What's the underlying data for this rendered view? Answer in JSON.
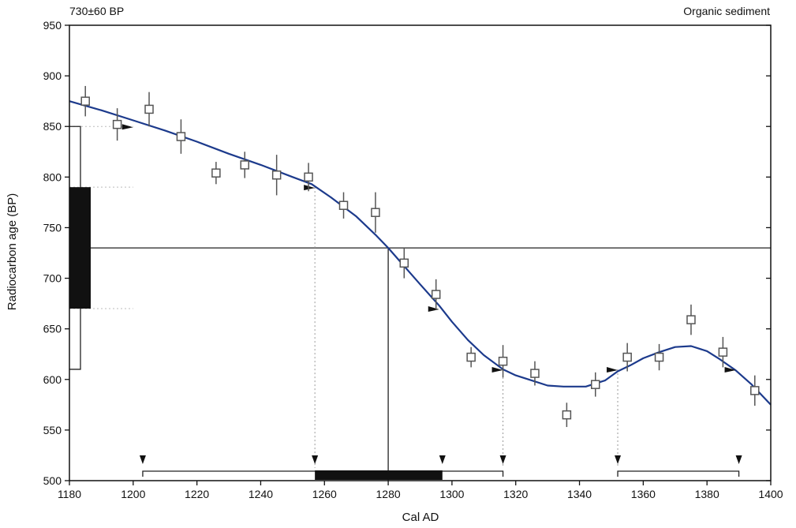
{
  "chart_data": {
    "type": "scatter",
    "title_left": "730±60 BP",
    "title_right": "Organic sediment",
    "xlabel": "Cal AD",
    "ylabel": "Radiocarbon age (BP)",
    "xlim": [
      1180,
      1400
    ],
    "ylim": [
      500,
      950
    ],
    "x_ticks": [
      1180,
      1200,
      1220,
      1240,
      1260,
      1280,
      1300,
      1320,
      1340,
      1360,
      1380,
      1400
    ],
    "x_tick_labels": [
      "1180",
      "1200",
      "1220",
      "1240",
      "1260",
      "1280",
      "1300",
      "1320",
      "1340",
      "1360",
      "1380",
      "1400"
    ],
    "y_ticks": [
      500,
      550,
      600,
      650,
      700,
      750,
      800,
      850,
      900,
      950
    ],
    "y_tick_labels": [
      "500",
      "550",
      "600",
      "650",
      "700",
      "750",
      "800",
      "850",
      "900",
      "950"
    ],
    "measured_age": 730,
    "sigma1_range": [
      670,
      790
    ],
    "sigma2_range": [
      610,
      850
    ],
    "measurements": [
      {
        "x": 1185,
        "y": 875,
        "err": 15
      },
      {
        "x": 1195,
        "y": 852,
        "err": 16
      },
      {
        "x": 1205,
        "y": 867,
        "err": 17
      },
      {
        "x": 1215,
        "y": 840,
        "err": 17
      },
      {
        "x": 1226,
        "y": 804,
        "err": 11
      },
      {
        "x": 1235,
        "y": 812,
        "err": 13
      },
      {
        "x": 1245,
        "y": 802,
        "err": 20
      },
      {
        "x": 1255,
        "y": 800,
        "err": 14
      },
      {
        "x": 1266,
        "y": 772,
        "err": 13
      },
      {
        "x": 1276,
        "y": 765,
        "err": 20
      },
      {
        "x": 1285,
        "y": 715,
        "err": 15
      },
      {
        "x": 1295,
        "y": 684,
        "err": 15
      },
      {
        "x": 1306,
        "y": 622,
        "err": 10
      },
      {
        "x": 1316,
        "y": 618,
        "err": 16
      },
      {
        "x": 1326,
        "y": 606,
        "err": 12
      },
      {
        "x": 1336,
        "y": 565,
        "err": 12
      },
      {
        "x": 1345,
        "y": 595,
        "err": 12
      },
      {
        "x": 1355,
        "y": 622,
        "err": 14
      },
      {
        "x": 1365,
        "y": 622,
        "err": 13
      },
      {
        "x": 1375,
        "y": 659,
        "err": 15
      },
      {
        "x": 1385,
        "y": 627,
        "err": 15
      },
      {
        "x": 1395,
        "y": 589,
        "err": 15
      }
    ],
    "calibration_curve": [
      [
        1180,
        875
      ],
      [
        1190,
        866
      ],
      [
        1200,
        856
      ],
      [
        1210,
        846
      ],
      [
        1220,
        835
      ],
      [
        1230,
        823
      ],
      [
        1240,
        812
      ],
      [
        1250,
        800
      ],
      [
        1256,
        793
      ],
      [
        1262,
        780
      ],
      [
        1270,
        761
      ],
      [
        1276,
        743
      ],
      [
        1280,
        730
      ],
      [
        1285,
        712
      ],
      [
        1290,
        694
      ],
      [
        1296,
        673
      ],
      [
        1300,
        657
      ],
      [
        1305,
        639
      ],
      [
        1310,
        624
      ],
      [
        1316,
        610
      ],
      [
        1320,
        604
      ],
      [
        1326,
        598
      ],
      [
        1330,
        594
      ],
      [
        1335,
        593
      ],
      [
        1342,
        593
      ],
      [
        1348,
        599
      ],
      [
        1352,
        608
      ],
      [
        1356,
        614
      ],
      [
        1360,
        621
      ],
      [
        1365,
        627
      ],
      [
        1370,
        632
      ],
      [
        1375,
        633
      ],
      [
        1380,
        628
      ],
      [
        1384,
        620
      ],
      [
        1389,
        609
      ],
      [
        1394,
        595
      ],
      [
        1400,
        575
      ]
    ],
    "curve_markers": [
      {
        "x": 1200,
        "y": 850
      },
      {
        "x": 1257,
        "y": 790
      },
      {
        "x": 1296,
        "y": 670
      },
      {
        "x": 1316,
        "y": 610
      },
      {
        "x": 1352,
        "y": 610
      },
      {
        "x": 1389,
        "y": 610
      }
    ],
    "projection_lines": [
      1257,
      1316,
      1352
    ],
    "measured_projection_x": 1280,
    "cal_ranges_2sigma": [
      [
        1203,
        1316
      ],
      [
        1352,
        1390
      ]
    ],
    "cal_range_1sigma": [
      1257,
      1297
    ],
    "range_arrows": [
      1203,
      1257,
      1297,
      1316,
      1352,
      1390
    ],
    "grid": false
  }
}
